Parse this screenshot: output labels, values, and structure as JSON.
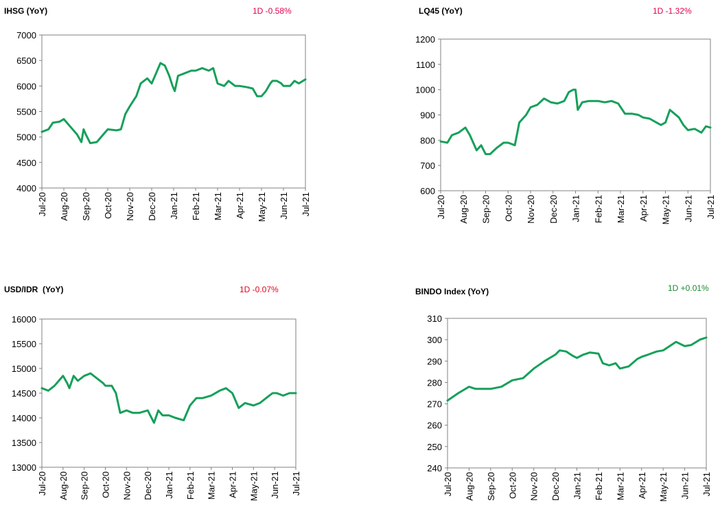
{
  "colors": {
    "line": "#16a05a",
    "negative": "#e0004d",
    "negative_alt": "#e8001c",
    "positive": "#1a8a2e",
    "axis": "#808080"
  },
  "panels": [
    {
      "title": "IHSG (YoY)",
      "change": "1D -0.58%",
      "change_color": "#e0004d"
    },
    {
      "title": "LQ45 (YoY)",
      "change": "1D -1.32%",
      "change_color": "#e0004d"
    },
    {
      "title": "USD/IDR  (YoY)",
      "change": "1D -0.07%",
      "change_color": "#e8001c"
    },
    {
      "title": "BINDO Index (YoY)",
      "change": "1D +0.01%",
      "change_color": "#1a8a2e"
    }
  ],
  "chart_data": [
    {
      "type": "line",
      "title": "IHSG (YoY)",
      "categories": [
        "Jul-20",
        "Aug-20",
        "Sep-20",
        "Oct-20",
        "Nov-20",
        "Dec-20",
        "Jan-21",
        "Feb-21",
        "Mar-21",
        "Apr-21",
        "May-21",
        "Jun-21",
        "Jul-21"
      ],
      "yticks": [
        "4000",
        "4500",
        "5000",
        "5500",
        "6000",
        "6500",
        "7000"
      ],
      "ylim": [
        4000,
        7000
      ],
      "x": [
        0,
        0.3,
        0.5,
        0.8,
        1,
        1.3,
        1.6,
        1.8,
        1.9,
        2,
        2.2,
        2.5,
        2.8,
        3,
        3.4,
        3.6,
        3.8,
        4,
        4.3,
        4.5,
        4.8,
        5,
        5.2,
        5.4,
        5.6,
        5.8,
        5.95,
        6.05,
        6.2,
        6.5,
        6.8,
        7,
        7.3,
        7.6,
        7.8,
        8,
        8.3,
        8.5,
        8.8,
        9,
        9.3,
        9.6,
        9.8,
        10,
        10.2,
        10.4,
        10.5,
        10.7,
        10.9,
        11,
        11.3,
        11.5,
        11.7,
        12
      ],
      "values": [
        5100,
        5150,
        5280,
        5300,
        5350,
        5200,
        5050,
        4900,
        5150,
        5050,
        4880,
        4900,
        5050,
        5150,
        5130,
        5150,
        5450,
        5600,
        5800,
        6050,
        6150,
        6050,
        6250,
        6450,
        6400,
        6200,
        6000,
        5900,
        6200,
        6250,
        6300,
        6300,
        6350,
        6300,
        6350,
        6050,
        6000,
        6100,
        6000,
        6000,
        5980,
        5950,
        5800,
        5800,
        5900,
        6050,
        6100,
        6100,
        6050,
        6000,
        6000,
        6100,
        6050,
        6130
      ],
      "xlabel": "",
      "ylabel": ""
    },
    {
      "type": "line",
      "title": "LQ45 (YoY)",
      "categories": [
        "Jul-20",
        "Aug-20",
        "Sep-20",
        "Oct-20",
        "Nov-20",
        "Dec-20",
        "Jan-21",
        "Feb-21",
        "Mar-21",
        "Apr-21",
        "May-21",
        "Jun-21",
        "Jul-21"
      ],
      "yticks": [
        "600",
        "700",
        "800",
        "900",
        "1000",
        "1100",
        "1200"
      ],
      "ylim": [
        600,
        1200
      ],
      "x": [
        0,
        0.3,
        0.5,
        0.8,
        1.1,
        1.3,
        1.6,
        1.8,
        2,
        2.2,
        2.5,
        2.8,
        3,
        3.3,
        3.5,
        3.8,
        4,
        4.3,
        4.6,
        4.9,
        5.2,
        5.5,
        5.7,
        5.9,
        6,
        6.1,
        6.3,
        6.6,
        7,
        7.3,
        7.6,
        7.9,
        8.2,
        8.5,
        8.8,
        9,
        9.3,
        9.6,
        9.8,
        10,
        10.2,
        10.4,
        10.6,
        10.8,
        11,
        11.3,
        11.6,
        11.8,
        12
      ],
      "values": [
        795,
        790,
        820,
        830,
        850,
        820,
        760,
        780,
        745,
        745,
        770,
        790,
        790,
        780,
        870,
        900,
        930,
        940,
        965,
        950,
        945,
        955,
        990,
        1000,
        1000,
        920,
        950,
        955,
        955,
        950,
        955,
        945,
        905,
        905,
        900,
        890,
        885,
        870,
        860,
        870,
        920,
        905,
        890,
        860,
        840,
        845,
        830,
        855,
        850
      ],
      "xlabel": "",
      "ylabel": ""
    },
    {
      "type": "line",
      "title": "USD/IDR  (YoY)",
      "categories": [
        "Jul-20",
        "Aug-20",
        "Sep-20",
        "Oct-20",
        "Nov-20",
        "Dec-20",
        "Jan-21",
        "Feb-21",
        "Mar-21",
        "Apr-21",
        "May-21",
        "Jun-21",
        "Jul-21"
      ],
      "yticks": [
        "13000",
        "13500",
        "14000",
        "14500",
        "15000",
        "15500",
        "16000"
      ],
      "ylim": [
        13000,
        16000
      ],
      "x": [
        0,
        0.3,
        0.6,
        0.9,
        1,
        1.2,
        1.3,
        1.5,
        1.7,
        2,
        2.3,
        2.6,
        2.9,
        3,
        3.3,
        3.5,
        3.7,
        4,
        4.3,
        4.6,
        5,
        5.3,
        5.5,
        5.7,
        6,
        6.3,
        6.7,
        7,
        7.3,
        7.6,
        8,
        8.4,
        8.7,
        9,
        9.3,
        9.6,
        10,
        10.3,
        10.6,
        10.9,
        11.1,
        11.4,
        11.7,
        12
      ],
      "values": [
        14600,
        14550,
        14650,
        14800,
        14850,
        14700,
        14600,
        14850,
        14750,
        14850,
        14900,
        14800,
        14700,
        14650,
        14650,
        14500,
        14100,
        14150,
        14100,
        14100,
        14150,
        13900,
        14150,
        14050,
        14050,
        14000,
        13950,
        14250,
        14400,
        14400,
        14450,
        14550,
        14600,
        14500,
        14200,
        14300,
        14250,
        14300,
        14400,
        14500,
        14500,
        14450,
        14500,
        14500
      ],
      "xlabel": "",
      "ylabel": ""
    },
    {
      "type": "line",
      "title": "BINDO Index (YoY)",
      "categories": [
        "Jul-20",
        "Aug-20",
        "Sep-20",
        "Oct-20",
        "Nov-20",
        "Dec-20",
        "Jan-21",
        "Feb-21",
        "Mar-21",
        "Apr-21",
        "May-21",
        "Jun-21",
        "Jul-21"
      ],
      "yticks": [
        "240",
        "250",
        "260",
        "270",
        "280",
        "290",
        "300",
        "310"
      ],
      "ylim": [
        240,
        310
      ],
      "x": [
        0,
        0.5,
        1,
        1.3,
        1.7,
        2,
        2.5,
        3,
        3.5,
        4,
        4.5,
        5,
        5.2,
        5.5,
        5.8,
        6,
        6.3,
        6.6,
        7,
        7.2,
        7.5,
        7.8,
        8,
        8.4,
        8.8,
        9,
        9.3,
        9.7,
        10,
        10.3,
        10.6,
        11,
        11.3,
        11.7,
        12
      ],
      "values": [
        271.5,
        275,
        278,
        277,
        277,
        277,
        278,
        281,
        282,
        286.5,
        290,
        293,
        295,
        294.5,
        292.5,
        291.5,
        293,
        294,
        293.5,
        289,
        288,
        289,
        286.5,
        287.5,
        291,
        292,
        293,
        294.5,
        295,
        297,
        299,
        297,
        297.5,
        300,
        301
      ],
      "xlabel": "",
      "ylabel": ""
    }
  ]
}
